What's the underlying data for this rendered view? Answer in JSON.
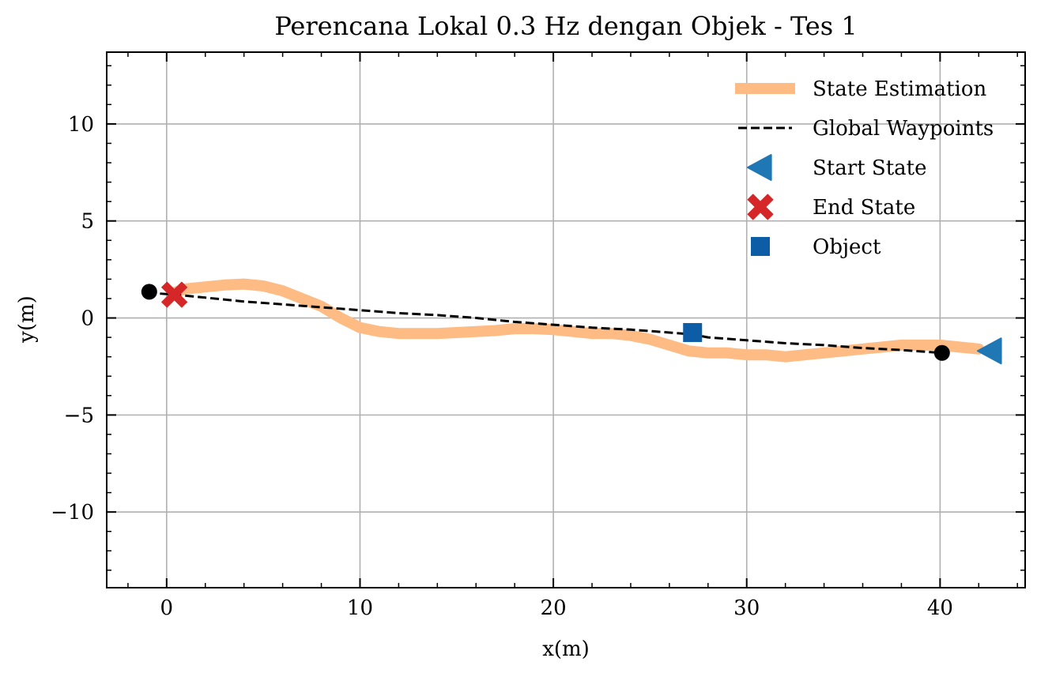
{
  "chart_data": {
    "type": "line",
    "title": "Perencana Lokal 0.3 Hz dengan Objek - Tes 1",
    "xlabel": "x(m)",
    "ylabel": "y(m)",
    "xlim": [
      -3.1,
      44.4
    ],
    "ylim": [
      -13.9,
      13.7
    ],
    "xticks": [
      0,
      10,
      20,
      30,
      40
    ],
    "yticks": [
      -10,
      -5,
      0,
      5,
      10
    ],
    "grid": true,
    "legend_position": "top-right",
    "series": [
      {
        "name": "State Estimation",
        "kind": "line",
        "color": "#ffbb84",
        "x": [
          42.0,
          41.0,
          40.0,
          39.0,
          38.0,
          37.0,
          36.0,
          35.0,
          34.0,
          33.0,
          32.0,
          31.0,
          30.0,
          29.0,
          28.0,
          27.0,
          26.0,
          25.0,
          24.0,
          23.0,
          22.0,
          21.0,
          20.0,
          19.0,
          18.0,
          17.0,
          16.0,
          15.0,
          14.0,
          13.0,
          12.0,
          11.0,
          10.0,
          9.0,
          8.0,
          7.0,
          6.0,
          5.0,
          4.0,
          3.0,
          2.0,
          1.0,
          0.5
        ],
        "y": [
          -1.6,
          -1.5,
          -1.4,
          -1.4,
          -1.4,
          -1.5,
          -1.6,
          -1.7,
          -1.8,
          -1.9,
          -2.0,
          -1.9,
          -1.9,
          -1.8,
          -1.8,
          -1.7,
          -1.4,
          -1.1,
          -0.9,
          -0.8,
          -0.8,
          -0.7,
          -0.6,
          -0.55,
          -0.55,
          -0.65,
          -0.7,
          -0.75,
          -0.8,
          -0.8,
          -0.8,
          -0.7,
          -0.5,
          0.0,
          0.6,
          1.0,
          1.4,
          1.65,
          1.75,
          1.7,
          1.6,
          1.5,
          1.35
        ]
      },
      {
        "name": "Global Waypoints",
        "kind": "dashed-line",
        "color": "#000000",
        "x": [
          -1.0,
          0.5,
          2.0,
          4.0,
          6.0,
          8.0,
          10.0,
          12.0,
          14.0,
          16.0,
          18.0,
          20.0,
          22.0,
          24.0,
          26.0,
          27.2,
          28.0,
          30.0,
          32.0,
          34.0,
          36.0,
          38.0,
          40.1
        ],
        "y": [
          1.3,
          1.2,
          1.05,
          0.85,
          0.7,
          0.55,
          0.4,
          0.25,
          0.15,
          0.0,
          -0.2,
          -0.35,
          -0.5,
          -0.6,
          -0.75,
          -0.85,
          -1.0,
          -1.15,
          -1.3,
          -1.4,
          -1.55,
          -1.65,
          -1.8
        ]
      },
      {
        "name": "Start State",
        "kind": "marker",
        "marker": "triangle-left",
        "color": "#1f77b4",
        "x": [
          42.6
        ],
        "y": [
          -1.7
        ]
      },
      {
        "name": "End State",
        "kind": "marker",
        "marker": "x-filled",
        "color": "#d62728",
        "x": [
          0.4
        ],
        "y": [
          1.2
        ]
      },
      {
        "name": "Object",
        "kind": "marker",
        "marker": "square",
        "color": "#0c5da5",
        "x": [
          27.2
        ],
        "y": [
          -0.75
        ]
      }
    ],
    "points": [
      {
        "kind": "marker",
        "marker": "circle",
        "color": "#000000",
        "x": -0.9,
        "y": 1.35
      },
      {
        "kind": "marker",
        "marker": "circle",
        "color": "#000000",
        "x": 40.1,
        "y": -1.8
      }
    ]
  }
}
